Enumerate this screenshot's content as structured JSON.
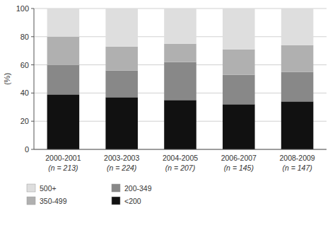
{
  "chart_data": {
    "type": "bar",
    "stacked": true,
    "categories": [
      [
        "2000-2001",
        "(n = 213)"
      ],
      [
        "2003-2003",
        "(n = 224)"
      ],
      [
        "2004-2005",
        "(n = 207)"
      ],
      [
        "2006-2007",
        "(n = 145)"
      ],
      [
        "2008-2009",
        "(n = 147)"
      ]
    ],
    "series": [
      {
        "name": "<200",
        "color": "#111111",
        "values": [
          39,
          37,
          35,
          32,
          34
        ]
      },
      {
        "name": "200-349",
        "color": "#888888",
        "values": [
          21,
          19,
          27,
          21,
          21
        ]
      },
      {
        "name": "350-499",
        "color": "#b0b0b0",
        "values": [
          20,
          17,
          13,
          18,
          19
        ]
      },
      {
        "name": "500+",
        "color": "#dedede",
        "values": [
          20,
          27,
          25,
          29,
          26
        ]
      }
    ],
    "y_label": "(%)",
    "ylim": [
      0,
      100
    ],
    "yticks": [
      0,
      20,
      40,
      60,
      80,
      100
    ],
    "grid": true
  }
}
